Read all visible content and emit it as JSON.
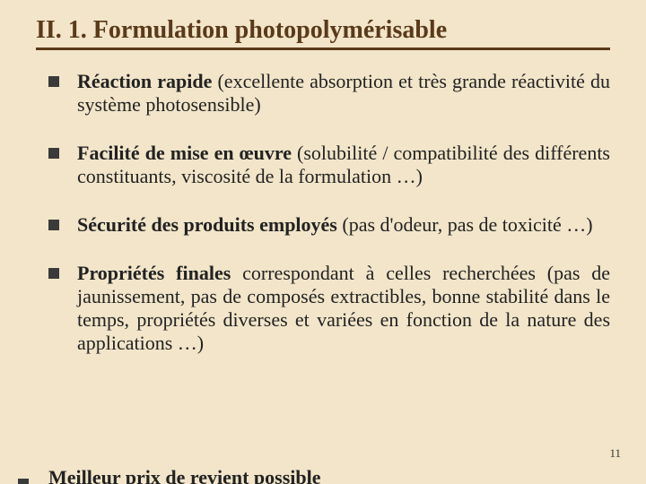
{
  "title": "II. 1. Formulation photopolymérisable",
  "items": [
    {
      "bold": "Réaction rapide",
      "rest": " (excellente absorption et très grande réactivité du système photosensible)"
    },
    {
      "bold": "Facilité de mise en œuvre",
      "rest": " (solubilité / compatibilité des différents constituants, viscosité de la formulation …)"
    },
    {
      "bold": "Sécurité des produits employés",
      "rest": " (pas d'odeur, pas de toxicité …)"
    },
    {
      "bold": "Propriétés finales",
      "rest": " correspondant à celles recherchées (pas de jaunissement, pas de composés extractibles, bonne stabilité dans le temps, propriétés diverses et variées en fonction de la nature des applications …)"
    }
  ],
  "cut_item": "Meilleur prix de revient possible",
  "page_number": "11"
}
